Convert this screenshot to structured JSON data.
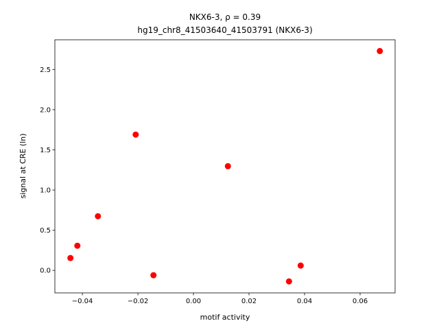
{
  "chart_data": {
    "type": "scatter",
    "title": "NKX6-3, ρ = 0.39",
    "subtitle": "hg19_chr8_41503640_41503791 (NKX6-3)",
    "x_label": "motif activity",
    "y_label": "signal at CRE (ln)",
    "color": "#ff0000",
    "x": [
      -0.0443,
      -0.0418,
      -0.0344,
      -0.0208,
      -0.0144,
      0.0124,
      0.0344,
      0.0386,
      0.0671
    ],
    "values": [
      0.154,
      0.307,
      0.674,
      1.69,
      -0.06,
      1.297,
      -0.137,
      0.06,
      2.73
    ],
    "xlim": [
      -0.0499,
      0.0726
    ],
    "ylim": [
      -0.28,
      2.87
    ],
    "xticks": [
      {
        "value": -0.04,
        "label": "−0.04"
      },
      {
        "value": -0.02,
        "label": "−0.02"
      },
      {
        "value": 0,
        "label": "0.00"
      },
      {
        "value": 0.02,
        "label": "0.02"
      },
      {
        "value": 0.04,
        "label": "0.04"
      },
      {
        "value": 0.06,
        "label": "0.06"
      }
    ],
    "yticks": [
      {
        "value": 0,
        "label": "0.0"
      },
      {
        "value": 0.5,
        "label": "0.5"
      },
      {
        "value": 1,
        "label": "1.0"
      },
      {
        "value": 1.5,
        "label": "1.5"
      },
      {
        "value": 2,
        "label": "2.0"
      },
      {
        "value": 2.5,
        "label": "2.5"
      }
    ]
  }
}
